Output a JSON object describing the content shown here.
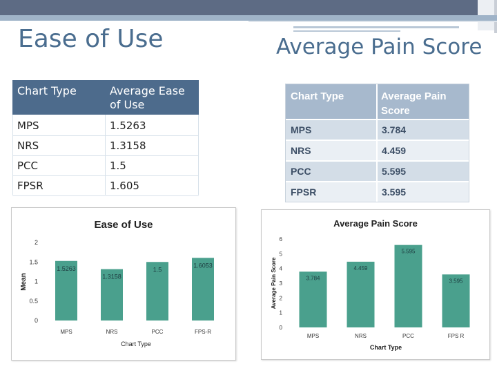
{
  "slide": {
    "left_title": "Ease of Use",
    "right_title": "Average Pain Score"
  },
  "ease_table": {
    "headers": [
      "Chart Type",
      "Average Ease of Use"
    ],
    "rows": [
      {
        "type": "MPS",
        "value": "1.5263"
      },
      {
        "type": "NRS",
        "value": "1.3158"
      },
      {
        "type": "PCC",
        "value": "1.5"
      },
      {
        "type": "FPSR",
        "value": "1.605"
      }
    ]
  },
  "pain_table": {
    "headers": [
      "Chart Type",
      "Average Pain Score"
    ],
    "rows": [
      {
        "type": "MPS",
        "value": "3.784"
      },
      {
        "type": "NRS",
        "value": "4.459"
      },
      {
        "type": "PCC",
        "value": "5.595"
      },
      {
        "type": "FPSR",
        "value": "3.595"
      }
    ]
  },
  "colors": {
    "accent": "#4a6d8f",
    "table_header": "#4d6b8c",
    "bar": "#4aa08d"
  },
  "chart_data": [
    {
      "type": "bar",
      "title": "Ease of Use",
      "xlabel": "Chart Type",
      "ylabel": "Mean",
      "categories": [
        "MPS",
        "NRS",
        "PCC",
        "FPS-R"
      ],
      "values": [
        1.5263,
        1.3158,
        1.5,
        1.6053
      ],
      "data_labels": [
        "1.5263",
        "1.3158",
        "1.5",
        "1.6053"
      ],
      "ylim": [
        0,
        2
      ],
      "yticks": [
        "0",
        "0.5",
        "1",
        "1.5",
        "2"
      ],
      "grid": false
    },
    {
      "type": "bar",
      "title": "Average Pain Score",
      "xlabel": "Chart Type",
      "ylabel": "Average Pain Score",
      "categories": [
        "MPS",
        "NRS",
        "PCC",
        "FPS R"
      ],
      "values": [
        3.784,
        4.459,
        5.595,
        3.595
      ],
      "data_labels": [
        "3.784",
        "4.459",
        "5.595",
        "3.595"
      ],
      "ylim": [
        0,
        6
      ],
      "yticks": [
        "0",
        "1",
        "2",
        "3",
        "4",
        "5",
        "6"
      ],
      "grid": false
    }
  ]
}
